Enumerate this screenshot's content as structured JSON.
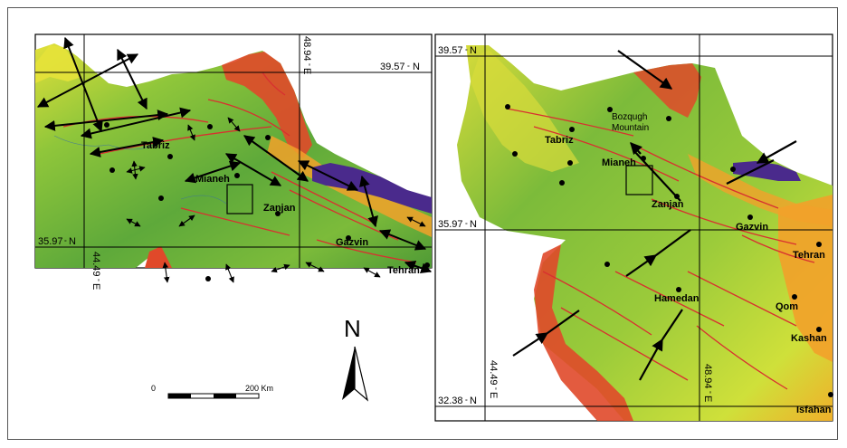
{
  "left_map": {
    "lat_top": "39.57",
    "lat_bottom": "35.97",
    "lat_unit": "N",
    "lon_left": "44.49",
    "lon_right": "48.94",
    "lon_unit": "E",
    "cities": [
      "Tabriz",
      "Mianeh",
      "Zanjan",
      "Gazvin",
      "Tehran"
    ]
  },
  "right_map": {
    "lat_top": "39.57",
    "lat_middle": "35.97",
    "lat_bottom": "32.38",
    "lat_unit": "N",
    "lon_left": "44.49",
    "lon_right": "48.94",
    "lon_unit": "E",
    "cities": [
      "Tabriz",
      "Mianeh",
      "Zanjan",
      "Gazvin",
      "Tehran",
      "Hamedan",
      "Qom",
      "Kashan",
      "Isfahan"
    ],
    "mountain": [
      "Bozqugh",
      "Mountain"
    ]
  },
  "north_arrow": {
    "label": "N"
  },
  "scale_bar": {
    "start": "0",
    "end": "200 Km"
  },
  "colors": {
    "lowland": "#4f9a36",
    "plain": "#8fc63a",
    "upland": "#e6e23a",
    "high": "#f2a12a",
    "peak": "#e0492a",
    "sea": "#4a2a8c",
    "fault": "#d83030"
  }
}
